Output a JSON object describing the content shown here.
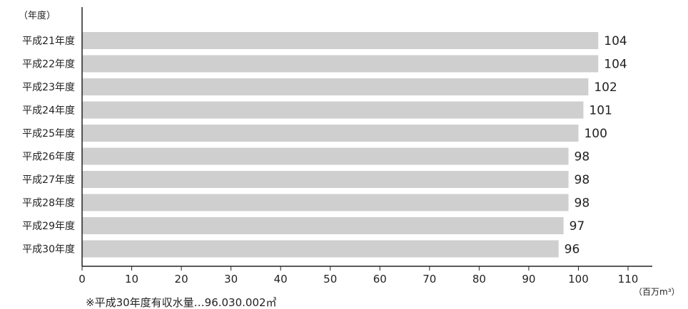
{
  "chart_data": {
    "type": "bar",
    "orientation": "horizontal",
    "categories": [
      "平成21年度",
      "平成22年度",
      "平成23年度",
      "平成24年度",
      "平成25年度",
      "平成26年度",
      "平成27年度",
      "平成28年度",
      "平成29年度",
      "平成30年度"
    ],
    "values": [
      104,
      104,
      102,
      101,
      100,
      98,
      98,
      98,
      97,
      96
    ],
    "ylabel": "（年度）",
    "xlabel": "（百万m³）",
    "xlim": [
      0,
      110
    ],
    "xticks": [
      0,
      10,
      20,
      30,
      40,
      50,
      60,
      70,
      80,
      90,
      100,
      110
    ],
    "grid": false,
    "bar_color": "#cfcfcf",
    "footnote": "※平成30年度有収水量…96.030.002㎥"
  }
}
